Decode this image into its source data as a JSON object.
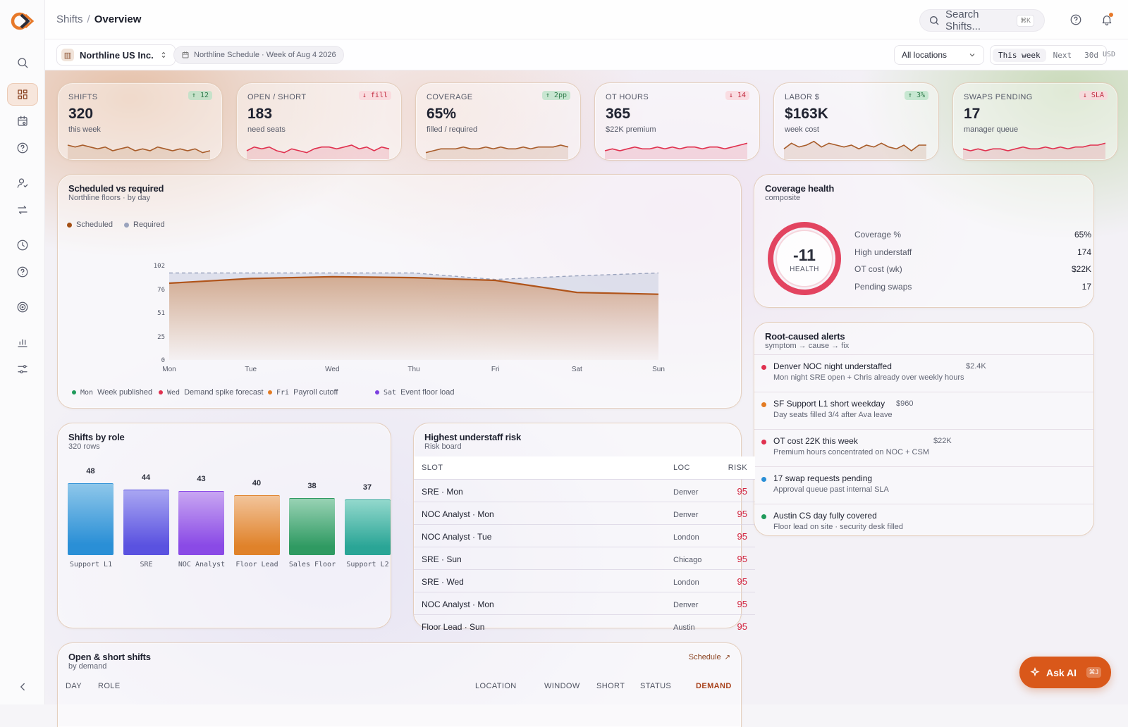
{
  "breadcrumb": {
    "parent": "Shifts",
    "sep": "/",
    "current": "Overview"
  },
  "search": {
    "placeholder": "Search Shifts...",
    "shortcut": "⌘K"
  },
  "org": {
    "name": "Northline US Inc."
  },
  "schedule_pill": "Northline Schedule · Week of Aug 4 2026",
  "location_select": "All locations",
  "range": [
    "This week",
    "Next",
    "30d"
  ],
  "currency": "USD",
  "sidebar_icons": [
    "search-icon",
    "dashboard-icon",
    "calendar-icon",
    "help-icon",
    "user-check-icon",
    "swap-icon",
    "clock-icon",
    "help-icon",
    "target-icon",
    "bar-chart-icon",
    "sliders-icon"
  ],
  "kpis": [
    {
      "label": "SHIFTS",
      "value": "320",
      "sub": "this week",
      "badge": "↑ 12",
      "dir": "up",
      "color": "#a85c2a",
      "spark": [
        6,
        5,
        6,
        5,
        4,
        5,
        3,
        4,
        5,
        3,
        4,
        3,
        5,
        4,
        3,
        4,
        3,
        4,
        2,
        3
      ]
    },
    {
      "label": "OPEN / SHORT",
      "value": "183",
      "sub": "need seats",
      "badge": "↓ fill",
      "dir": "dn",
      "color": "#e0314f",
      "spark": [
        3,
        5,
        4,
        5,
        3,
        2,
        4,
        3,
        2,
        4,
        5,
        5,
        4,
        5,
        6,
        4,
        5,
        3,
        5,
        4
      ]
    },
    {
      "label": "COVERAGE",
      "value": "65%",
      "sub": "filled / required",
      "badge": "↑ 2pp",
      "dir": "up",
      "color": "#a85c2a",
      "spark": [
        2,
        3,
        4,
        4,
        4,
        5,
        4,
        4,
        5,
        4,
        5,
        4,
        4,
        5,
        4,
        5,
        5,
        5,
        6,
        5
      ]
    },
    {
      "label": "OT HOURS",
      "value": "365",
      "sub": "$22K premium",
      "badge": "↓ 14",
      "dir": "dn",
      "color": "#e0314f",
      "spark": [
        3,
        4,
        3,
        4,
        5,
        4,
        4,
        5,
        4,
        5,
        4,
        5,
        5,
        4,
        5,
        5,
        4,
        5,
        6,
        7
      ]
    },
    {
      "label": "LABOR $",
      "value": "$163K",
      "sub": "week cost",
      "badge": "↑ 3%",
      "dir": "up",
      "color": "#a85c2a",
      "spark": [
        4,
        7,
        5,
        6,
        8,
        5,
        7,
        6,
        5,
        6,
        4,
        6,
        5,
        7,
        5,
        4,
        6,
        3,
        6,
        6
      ]
    },
    {
      "label": "SWAPS PENDING",
      "value": "17",
      "sub": "manager queue",
      "badge": "↓ SLA",
      "dir": "dn",
      "color": "#e0314f",
      "spark": [
        4,
        3,
        4,
        3,
        4,
        4,
        3,
        4,
        5,
        4,
        4,
        5,
        4,
        5,
        4,
        5,
        5,
        6,
        6,
        7
      ]
    }
  ],
  "sched_chart": {
    "title": "Scheduled vs required",
    "subtitle": "Northline floors · by day",
    "legend": [
      {
        "name": "Scheduled",
        "color": "#a34f14"
      },
      {
        "name": "Required",
        "color": "#9aa3bd"
      }
    ],
    "events": [
      {
        "day": "Mon",
        "text": "Week published",
        "color": "#1f9a5a"
      },
      {
        "day": "Wed",
        "text": "Demand spike forecast",
        "color": "#e0314f"
      },
      {
        "day": "Fri",
        "text": "Payroll cutoff",
        "color": "#e37b22"
      },
      {
        "day": "Sat",
        "text": "Event floor load",
        "color": "#7b3fe0"
      }
    ]
  },
  "chart_data": {
    "type": "area",
    "categories": [
      "Mon",
      "Tue",
      "Wed",
      "Thu",
      "Fri",
      "Sat",
      "Sun"
    ],
    "series": [
      {
        "name": "Scheduled",
        "values": [
          83,
          88,
          90,
          89,
          86,
          73,
          71
        ]
      },
      {
        "name": "Required",
        "values": [
          94,
          94,
          94,
          94,
          87,
          91,
          94
        ]
      }
    ],
    "yticks": [
      "0",
      "25",
      "51",
      "76",
      "102"
    ],
    "ylim": [
      0,
      102
    ],
    "title": "Scheduled vs required",
    "xlabel": "",
    "ylabel": ""
  },
  "health": {
    "title": "Coverage health",
    "subtitle": "composite",
    "score": "-11",
    "score_label": "HEALTH",
    "rows": [
      {
        "label": "Coverage %",
        "value": "65%"
      },
      {
        "label": "High understaff",
        "value": "174"
      },
      {
        "label": "OT cost (wk)",
        "value": "$22K"
      },
      {
        "label": "Pending swaps",
        "value": "17"
      }
    ]
  },
  "alerts": {
    "title": "Root-caused alerts",
    "subtitle": "symptom → cause → fix",
    "items": [
      {
        "title": "Denver NOC night understaffed",
        "amount": "$2.4K",
        "sub": "Mon night SRE open + Chris already over weekly hours",
        "color": "#e0314f"
      },
      {
        "title": "SF Support L1 short weekday",
        "amount": "$960",
        "sub": "Day seats filled 3/4 after Ava leave",
        "color": "#e37b22"
      },
      {
        "title": "OT cost 22K this week",
        "amount": "$22K",
        "sub": "Premium hours concentrated on NOC + CSM",
        "color": "#e0314f"
      },
      {
        "title": "17 swap requests pending",
        "amount": "",
        "sub": "Approval queue past internal SLA",
        "color": "#2a8fd6"
      },
      {
        "title": "Austin CS day fully covered",
        "amount": "",
        "sub": "Floor lead on site · security desk filled",
        "color": "#1f9a5a"
      }
    ]
  },
  "roles": {
    "title": "Shifts by role",
    "subtitle": "320 rows",
    "bars": [
      {
        "label": "Support L1",
        "value": 48,
        "c1": "#8ec7ea",
        "c2": "#2a8fd6"
      },
      {
        "label": "SRE",
        "value": 44,
        "c1": "#a9a6f2",
        "c2": "#5a52e0"
      },
      {
        "label": "NOC Analyst",
        "value": 43,
        "c1": "#c8a6f2",
        "c2": "#8a4ae6"
      },
      {
        "label": "Floor Lead",
        "value": 40,
        "c1": "#f2c49a",
        "c2": "#e0822a"
      },
      {
        "label": "Sales Floor",
        "value": 38,
        "c1": "#98d2b4",
        "c2": "#2f9a62"
      },
      {
        "label": "Support L2",
        "value": 37,
        "c1": "#92d8cc",
        "c2": "#2aa596"
      }
    ]
  },
  "risk": {
    "title": "Highest understaff risk",
    "subtitle": "Risk board",
    "headers": [
      "SLOT",
      "LOC",
      "RISK"
    ],
    "rows": [
      {
        "slot": "SRE · Mon",
        "loc": "Denver",
        "risk": "95"
      },
      {
        "slot": "NOC Analyst · Mon",
        "loc": "Denver",
        "risk": "95"
      },
      {
        "slot": "NOC Analyst · Tue",
        "loc": "London",
        "risk": "95"
      },
      {
        "slot": "SRE · Sun",
        "loc": "Chicago",
        "risk": "95"
      },
      {
        "slot": "SRE · Wed",
        "loc": "London",
        "risk": "95"
      },
      {
        "slot": "NOC Analyst · Mon",
        "loc": "Denver",
        "risk": "95"
      },
      {
        "slot": "Floor Lead · Sun",
        "loc": "Austin",
        "risk": "95"
      }
    ]
  },
  "open_shifts": {
    "title": "Open & short shifts",
    "subtitle": "by demand",
    "action": "Schedule",
    "headers": [
      "DAY",
      "ROLE",
      "LOCATION",
      "WINDOW",
      "SHORT",
      "STATUS",
      "DEMAND"
    ]
  },
  "ask_ai": {
    "label": "Ask AI",
    "shortcut": "⌘J"
  }
}
